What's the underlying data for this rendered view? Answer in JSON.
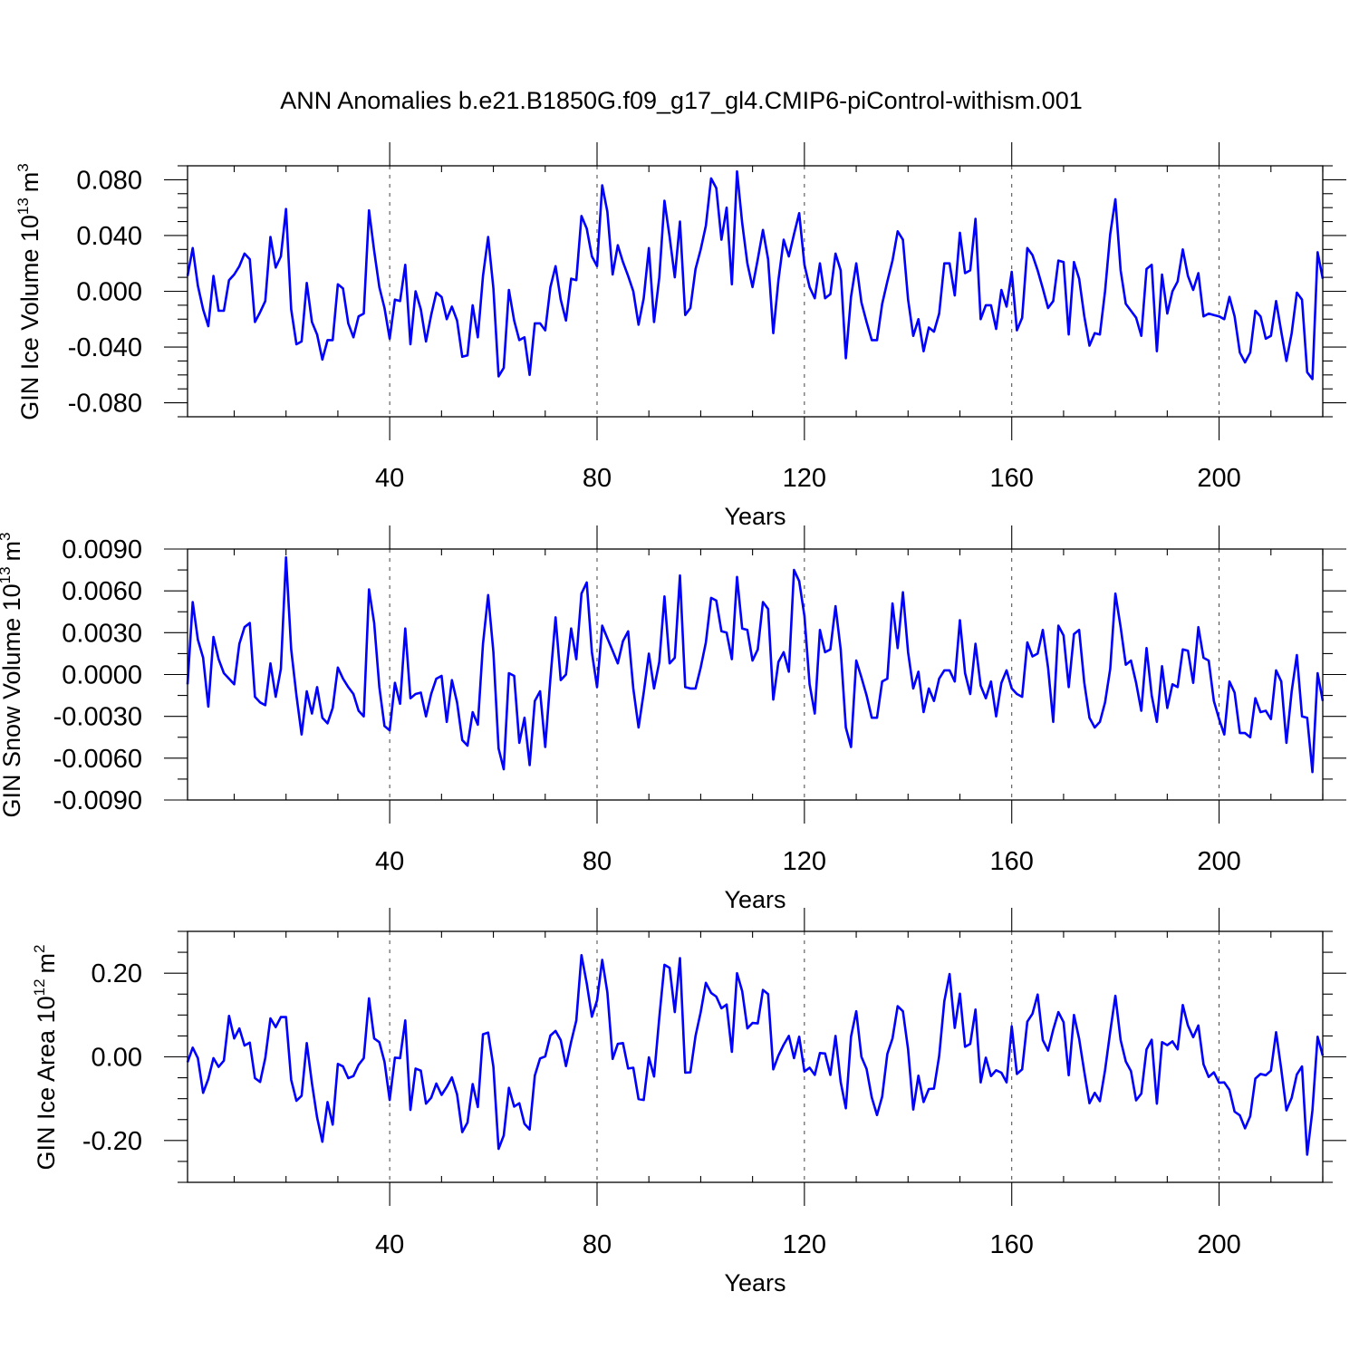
{
  "title": "ANN Anomalies b.e21.B1850G.f09_g17_gl4.CMIP6-piControl-withism.001",
  "colors": {
    "series": "#0000ff",
    "frame": "#000000",
    "grid": "#555555"
  },
  "chart_data": [
    {
      "type": "line",
      "name": "ice-volume",
      "ylabel_main": "GIN Ice Volume 10",
      "ylabel_exp": "13",
      "ylabel_unit": "m",
      "ylabel_unit_exp": "3",
      "xlabel": "Years",
      "xlim": [
        1,
        220
      ],
      "ylim": [
        -0.09,
        0.09
      ],
      "xticks": [
        40,
        80,
        120,
        160,
        200
      ],
      "xtick_labels": [
        "40",
        "80",
        "120",
        "160",
        "200"
      ],
      "yticks": [
        -0.08,
        -0.04,
        0.0,
        0.04,
        0.08
      ],
      "ytick_labels": [
        "-0.080",
        "-0.040",
        "0.000",
        "0.040",
        "0.080"
      ],
      "grid": "vertical dashed at x ticks",
      "x_start": 1,
      "values": [
        0.011,
        0.031,
        0.004,
        -0.013,
        -0.025,
        0.011,
        -0.014,
        -0.014,
        0.008,
        0.012,
        0.018,
        0.027,
        0.023,
        -0.022,
        -0.015,
        -0.007,
        0.039,
        0.017,
        0.025,
        0.059,
        -0.013,
        -0.038,
        -0.036,
        0.006,
        -0.022,
        -0.031,
        -0.049,
        -0.035,
        -0.035,
        0.005,
        0.002,
        -0.023,
        -0.033,
        -0.018,
        -0.016,
        0.058,
        0.029,
        0.003,
        -0.012,
        -0.034,
        -0.006,
        -0.007,
        0.019,
        -0.038,
        0.0,
        -0.013,
        -0.036,
        -0.017,
        -0.001,
        -0.004,
        -0.02,
        -0.011,
        -0.021,
        -0.047,
        -0.046,
        -0.01,
        -0.033,
        0.011,
        0.039,
        0.002,
        -0.061,
        -0.055,
        0.001,
        -0.021,
        -0.035,
        -0.033,
        -0.06,
        -0.023,
        -0.023,
        -0.028,
        0.003,
        0.018,
        -0.006,
        -0.021,
        0.009,
        0.008,
        0.054,
        0.045,
        0.025,
        0.018,
        0.076,
        0.057,
        0.012,
        0.033,
        0.021,
        0.011,
        0.0,
        -0.024,
        -0.005,
        0.031,
        -0.022,
        0.01,
        0.065,
        0.039,
        0.01,
        0.05,
        -0.017,
        -0.012,
        0.016,
        0.03,
        0.047,
        0.081,
        0.074,
        0.037,
        0.06,
        0.005,
        0.086,
        0.049,
        0.02,
        0.003,
        0.023,
        0.044,
        0.023,
        -0.03,
        0.008,
        0.037,
        0.025,
        0.041,
        0.056,
        0.019,
        0.003,
        -0.005,
        0.02,
        -0.005,
        -0.002,
        0.027,
        0.015,
        -0.048,
        -0.004,
        0.02,
        -0.008,
        -0.022,
        -0.035,
        -0.035,
        -0.009,
        0.007,
        0.022,
        0.043,
        0.037,
        -0.006,
        -0.032,
        -0.02,
        -0.043,
        -0.026,
        -0.029,
        -0.016,
        0.02,
        0.02,
        -0.003,
        0.042,
        0.013,
        0.015,
        0.052,
        -0.02,
        -0.01,
        -0.01,
        -0.027,
        0.001,
        -0.011,
        0.014,
        -0.028,
        -0.019,
        0.031,
        0.026,
        0.015,
        0.002,
        -0.012,
        -0.007,
        0.022,
        0.021,
        -0.031,
        0.021,
        0.009,
        -0.018,
        -0.039,
        -0.03,
        -0.031,
        0.0,
        0.041,
        0.066,
        0.015,
        -0.009,
        -0.014,
        -0.019,
        -0.032,
        0.016,
        0.019,
        -0.043,
        0.012,
        -0.016,
        0.0,
        0.007,
        0.03,
        0.011,
        0.001,
        0.013,
        -0.018,
        -0.016,
        -0.017,
        -0.018,
        -0.02,
        -0.004,
        -0.018,
        -0.044,
        -0.051,
        -0.044,
        -0.014,
        -0.018,
        -0.034,
        -0.032,
        -0.007,
        -0.029,
        -0.05,
        -0.03,
        -0.001,
        -0.006,
        -0.058,
        -0.063,
        0.028,
        0.009
      ]
    },
    {
      "type": "line",
      "name": "snow-volume",
      "ylabel_main": "GIN Snow Volume 10",
      "ylabel_exp": "13",
      "ylabel_unit": "m",
      "ylabel_unit_exp": "3",
      "xlabel": "Years",
      "xlim": [
        1,
        220
      ],
      "ylim": [
        -0.009,
        0.009
      ],
      "xticks": [
        40,
        80,
        120,
        160,
        200
      ],
      "xtick_labels": [
        "40",
        "80",
        "120",
        "160",
        "200"
      ],
      "yticks": [
        -0.009,
        -0.006,
        -0.003,
        0.0,
        0.003,
        0.006,
        0.009
      ],
      "ytick_labels": [
        "-0.0090",
        "-0.0060",
        "-0.0030",
        "0.0000",
        "0.0030",
        "0.0060",
        "0.0090"
      ],
      "grid": "vertical dashed at x ticks",
      "x_start": 1,
      "values": [
        -0.0007,
        0.0052,
        0.0025,
        0.0012,
        -0.0023,
        0.0027,
        0.0011,
        0.0001,
        -0.0003,
        -0.0007,
        0.0022,
        0.0034,
        0.0037,
        -0.0016,
        -0.002,
        -0.0022,
        0.0008,
        -0.0016,
        0.0004,
        0.0084,
        0.0018,
        -0.0015,
        -0.0043,
        -0.0012,
        -0.0028,
        -0.0009,
        -0.0031,
        -0.0035,
        -0.0024,
        0.0005,
        -0.0003,
        -0.0009,
        -0.0014,
        -0.0026,
        -0.003,
        0.0061,
        0.0037,
        -0.0009,
        -0.0037,
        -0.004,
        -0.0006,
        -0.0021,
        0.0033,
        -0.0017,
        -0.0014,
        -0.0013,
        -0.003,
        -0.0014,
        -0.0003,
        -0.0001,
        -0.0034,
        -0.0004,
        -0.002,
        -0.0047,
        -0.0051,
        -0.0027,
        -0.0036,
        0.0022,
        0.0057,
        0.0016,
        -0.0053,
        -0.0068,
        0.0001,
        -0.0001,
        -0.0049,
        -0.0031,
        -0.0065,
        -0.0019,
        -0.0012,
        -0.0052,
        -0.0003,
        0.0041,
        -0.0004,
        0.0,
        0.0033,
        0.0011,
        0.0058,
        0.0066,
        0.0016,
        -0.0009,
        0.0035,
        0.0026,
        0.0017,
        0.0008,
        0.0024,
        0.0031,
        -0.001,
        -0.0038,
        -0.0013,
        0.0015,
        -0.001,
        0.0009,
        0.0056,
        0.0008,
        0.0012,
        0.0071,
        -0.0009,
        -0.001,
        -0.001,
        0.0005,
        0.0023,
        0.0055,
        0.0053,
        0.0031,
        0.003,
        0.0011,
        0.007,
        0.0033,
        0.0032,
        0.001,
        0.0018,
        0.0052,
        0.0047,
        -0.0018,
        0.0009,
        0.0016,
        0.0002,
        0.0075,
        0.0067,
        0.0042,
        -0.0007,
        -0.0028,
        0.0032,
        0.0016,
        0.0018,
        0.0049,
        0.0018,
        -0.0038,
        -0.0052,
        0.001,
        -0.0002,
        -0.0015,
        -0.0031,
        -0.0031,
        -0.0005,
        -0.0003,
        0.0051,
        0.0019,
        0.0059,
        0.0016,
        -0.001,
        0.0002,
        -0.0027,
        -0.001,
        -0.0019,
        -0.0003,
        0.0003,
        0.0003,
        -0.0005,
        0.0039,
        0.0001,
        -0.0014,
        0.0022,
        -0.0008,
        -0.0017,
        -0.0005,
        -0.003,
        -0.0006,
        0.0003,
        -0.001,
        -0.0014,
        -0.0016,
        0.0023,
        0.0013,
        0.0015,
        0.0032,
        0.0005,
        -0.0034,
        0.0035,
        0.0028,
        -0.0009,
        0.0029,
        0.0032,
        -0.0006,
        -0.0031,
        -0.0038,
        -0.0034,
        -0.002,
        0.0004,
        0.0058,
        0.0034,
        0.0007,
        0.001,
        -0.0006,
        -0.0026,
        0.0019,
        -0.0015,
        -0.0034,
        0.0006,
        -0.0024,
        -0.0007,
        -0.0009,
        0.0018,
        0.0017,
        -0.0006,
        0.0034,
        0.0012,
        0.001,
        -0.0019,
        -0.0032,
        -0.0043,
        -0.0005,
        -0.0013,
        -0.0042,
        -0.0042,
        -0.0045,
        -0.0017,
        -0.0027,
        -0.0026,
        -0.0032,
        0.0003,
        -0.0005,
        -0.0049,
        -0.0012,
        0.0014,
        -0.003,
        -0.0031,
        -0.007,
        0.0001,
        -0.0019
      ]
    },
    {
      "type": "line",
      "name": "ice-area",
      "ylabel_main": "GIN Ice Area 10",
      "ylabel_exp": "12",
      "ylabel_unit": "m",
      "ylabel_unit_exp": "2",
      "xlabel": "Years",
      "xlim": [
        1,
        220
      ],
      "ylim": [
        -0.3,
        0.3
      ],
      "xticks": [
        40,
        80,
        120,
        160,
        200
      ],
      "xtick_labels": [
        "40",
        "80",
        "120",
        "160",
        "200"
      ],
      "yticks": [
        -0.2,
        0.0,
        0.2
      ],
      "ytick_labels": [
        "-0.20",
        "0.00",
        "0.20"
      ],
      "grid": "vertical dashed at x ticks",
      "x_start": 1,
      "values": [
        -0.013,
        0.022,
        -0.003,
        -0.086,
        -0.053,
        -0.003,
        -0.024,
        -0.009,
        0.098,
        0.044,
        0.068,
        0.027,
        0.034,
        -0.051,
        -0.06,
        -0.003,
        0.092,
        0.071,
        0.095,
        0.095,
        -0.055,
        -0.105,
        -0.093,
        0.033,
        -0.063,
        -0.145,
        -0.203,
        -0.108,
        -0.162,
        -0.017,
        -0.023,
        -0.051,
        -0.046,
        -0.019,
        -0.003,
        0.14,
        0.044,
        0.035,
        -0.012,
        -0.103,
        -0.002,
        -0.003,
        0.087,
        -0.127,
        -0.028,
        -0.033,
        -0.112,
        -0.098,
        -0.064,
        -0.091,
        -0.072,
        -0.049,
        -0.09,
        -0.18,
        -0.157,
        -0.065,
        -0.12,
        0.054,
        0.058,
        -0.024,
        -0.22,
        -0.188,
        -0.074,
        -0.119,
        -0.111,
        -0.16,
        -0.174,
        -0.045,
        -0.004,
        0.001,
        0.051,
        0.062,
        0.04,
        -0.022,
        0.036,
        0.087,
        0.243,
        0.176,
        0.096,
        0.135,
        0.232,
        0.154,
        -0.005,
        0.031,
        0.033,
        -0.028,
        -0.026,
        -0.101,
        -0.103,
        -0.001,
        -0.047,
        0.094,
        0.22,
        0.213,
        0.107,
        0.236,
        -0.038,
        -0.037,
        0.05,
        0.107,
        0.177,
        0.153,
        0.144,
        0.116,
        0.125,
        0.012,
        0.2,
        0.157,
        0.068,
        0.081,
        0.08,
        0.16,
        0.15,
        -0.03,
        0.003,
        0.029,
        0.05,
        -0.003,
        0.048,
        -0.035,
        -0.026,
        -0.043,
        0.009,
        0.008,
        -0.043,
        0.05,
        -0.06,
        -0.123,
        0.048,
        0.109,
        0.0,
        -0.029,
        -0.097,
        -0.139,
        -0.095,
        0.007,
        0.044,
        0.121,
        0.109,
        0.018,
        -0.126,
        -0.045,
        -0.108,
        -0.077,
        -0.076,
        0.002,
        0.133,
        0.198,
        0.069,
        0.151,
        0.024,
        0.031,
        0.113,
        -0.061,
        -0.002,
        -0.046,
        -0.032,
        -0.038,
        -0.061,
        0.073,
        -0.041,
        -0.03,
        0.084,
        0.103,
        0.149,
        0.04,
        0.015,
        0.065,
        0.107,
        0.083,
        -0.044,
        0.1,
        0.043,
        -0.036,
        -0.111,
        -0.086,
        -0.106,
        -0.032,
        0.06,
        0.146,
        0.04,
        -0.011,
        -0.034,
        -0.104,
        -0.088,
        0.018,
        0.041,
        -0.112,
        0.035,
        0.028,
        0.037,
        0.018,
        0.124,
        0.075,
        0.047,
        0.075,
        -0.018,
        -0.048,
        -0.037,
        -0.062,
        -0.061,
        -0.079,
        -0.131,
        -0.14,
        -0.171,
        -0.142,
        -0.052,
        -0.041,
        -0.044,
        -0.033,
        0.059,
        -0.03,
        -0.128,
        -0.098,
        -0.042,
        -0.023,
        -0.234,
        -0.128,
        0.048,
        0.003
      ]
    }
  ]
}
